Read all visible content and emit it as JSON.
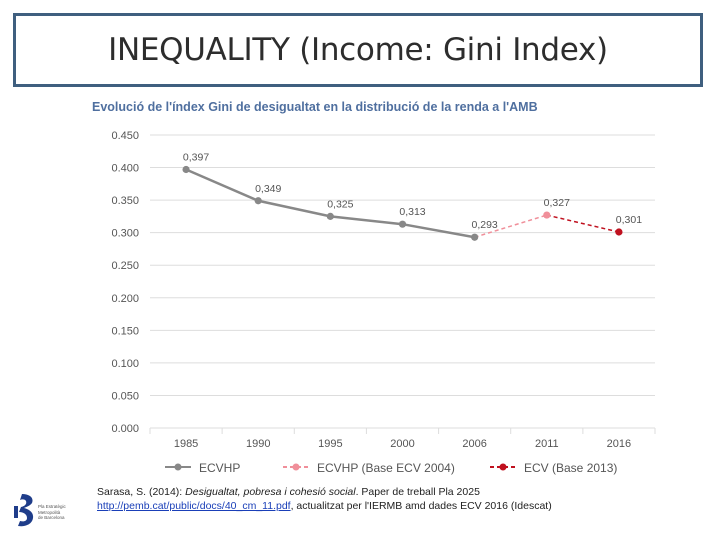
{
  "slide": {
    "title": "INEQUALITY (Income: Gini Index)"
  },
  "chart_title": "Evolució de l'índex Gini de desigualtat en la distribució de la renda a l'AMB",
  "source": {
    "citation_prefix": "Sarasa, S. (2014): ",
    "citation_italic": "Desigualtat, pobresa i cohesió social",
    "citation_suffix": ". Paper de treball Pla 2025",
    "link": "http://pemb.cat/public/docs/40_cm_11.pdf",
    "link_suffix": ", actualitzat per l'IERMB amd dades ECV 2016 (Idescat)"
  },
  "logo": {
    "text_line1": "Pla Estratègic",
    "text_line2": "Metropolità",
    "text_line3": "de Barcelona"
  },
  "colors": {
    "ecvhp": "#888888",
    "ecvhp_base": "#f08f9a",
    "ecv_base2013": "#c0111f",
    "grid": "#dddddd",
    "axis_text": "#555555",
    "chart_title": "#4f6f9f"
  },
  "chart_data": {
    "type": "line",
    "title": "Evolució de l'índex Gini de desigualtat en la distribució de la renda a l'AMB",
    "categories": [
      "1985",
      "1990",
      "1995",
      "2000",
      "2006",
      "2011",
      "2016"
    ],
    "y_ticks": [
      "0.450",
      "0.400",
      "0.350",
      "0.300",
      "0.250",
      "0.200",
      "0.150",
      "0.100",
      "0.050",
      "0.000"
    ],
    "ylim": [
      0,
      0.45
    ],
    "grid": true,
    "legend_position": "bottom",
    "series": [
      {
        "name": "ECVHP",
        "style": "solid",
        "points": [
          {
            "x": "1985",
            "y": 0.397,
            "label": "0,397"
          },
          {
            "x": "1990",
            "y": 0.349,
            "label": "0,349"
          },
          {
            "x": "1995",
            "y": 0.325,
            "label": "0,325"
          },
          {
            "x": "2000",
            "y": 0.313,
            "label": "0,313"
          },
          {
            "x": "2006",
            "y": 0.293,
            "label": "0,293"
          }
        ]
      },
      {
        "name": "ECVHP (Base ECV 2004)",
        "style": "dashed",
        "points": [
          {
            "x": "2006",
            "y": 0.293,
            "label": ""
          },
          {
            "x": "2011",
            "y": 0.327,
            "label": "0,327"
          }
        ]
      },
      {
        "name": "ECV (Base 2013)",
        "style": "dashed",
        "points": [
          {
            "x": "2011",
            "y": 0.327,
            "label": ""
          },
          {
            "x": "2016",
            "y": 0.301,
            "label": "0,301"
          }
        ]
      }
    ]
  }
}
